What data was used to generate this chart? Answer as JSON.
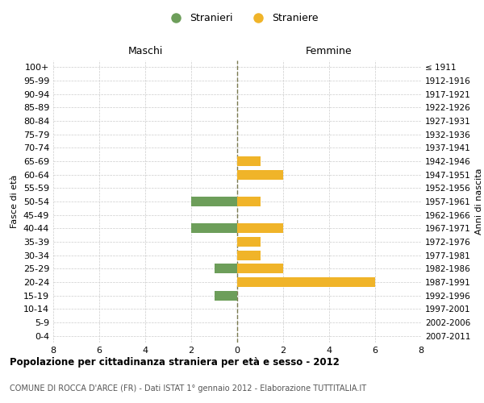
{
  "age_groups": [
    "100+",
    "95-99",
    "90-94",
    "85-89",
    "80-84",
    "75-79",
    "70-74",
    "65-69",
    "60-64",
    "55-59",
    "50-54",
    "45-49",
    "40-44",
    "35-39",
    "30-34",
    "25-29",
    "20-24",
    "15-19",
    "10-14",
    "5-9",
    "0-4"
  ],
  "birth_years": [
    "≤ 1911",
    "1912-1916",
    "1917-1921",
    "1922-1926",
    "1927-1931",
    "1932-1936",
    "1937-1941",
    "1942-1946",
    "1947-1951",
    "1952-1956",
    "1957-1961",
    "1962-1966",
    "1967-1971",
    "1972-1976",
    "1977-1981",
    "1982-1986",
    "1987-1991",
    "1992-1996",
    "1997-2001",
    "2002-2006",
    "2007-2011"
  ],
  "males": [
    0,
    0,
    0,
    0,
    0,
    0,
    0,
    0,
    0,
    0,
    2,
    0,
    2,
    0,
    0,
    1,
    0,
    1,
    0,
    0,
    0
  ],
  "females": [
    0,
    0,
    0,
    0,
    0,
    0,
    0,
    1,
    2,
    0,
    1,
    0,
    2,
    1,
    1,
    2,
    6,
    0,
    0,
    0,
    0
  ],
  "male_color": "#6d9e5a",
  "female_color": "#f0b429",
  "title": "Popolazione per cittadinanza straniera per età e sesso - 2012",
  "subtitle": "COMUNE DI ROCCA D'ARCE (FR) - Dati ISTAT 1° gennaio 2012 - Elaborazione TUTTITALIA.IT",
  "xlabel_left": "Maschi",
  "xlabel_right": "Femmine",
  "ylabel_left": "Fasce di età",
  "ylabel_right": "Anni di nascita",
  "legend_male": "Stranieri",
  "legend_female": "Straniere",
  "xlim": 8,
  "background_color": "#ffffff",
  "grid_color": "#cccccc",
  "center_line_color": "#7a7a50"
}
